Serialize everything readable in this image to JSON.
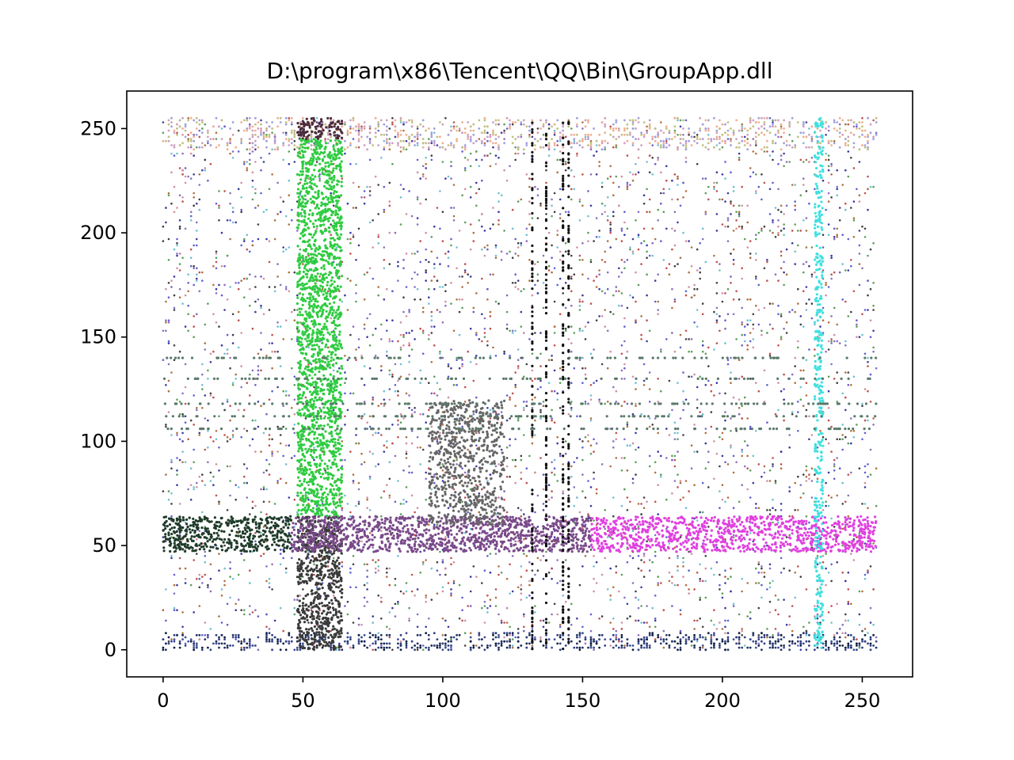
{
  "chart_data": {
    "type": "scatter",
    "title": "D:\\program\\x86\\Tencent\\QQ\\Bin\\GroupApp.dll",
    "xlabel": "",
    "ylabel": "",
    "xlim": [
      -13,
      268
    ],
    "ylim": [
      -13,
      268
    ],
    "x_ticks": [
      0,
      50,
      100,
      150,
      200,
      250
    ],
    "y_ticks": [
      0,
      50,
      100,
      150,
      200,
      250
    ],
    "grid": false,
    "legend": "none",
    "point_domain": {
      "x": [
        0,
        255
      ],
      "y": [
        0,
        255
      ]
    },
    "features": [
      {
        "name": "vertical green band",
        "x": [
          48,
          64
        ],
        "y": [
          0,
          255
        ],
        "color": "#2ecc40"
      },
      {
        "name": "horizontal band",
        "x": [
          0,
          255
        ],
        "y": [
          47,
          64
        ],
        "colors": [
          "#1f3b2a",
          "#7a4a8a",
          "#e040e0"
        ]
      },
      {
        "name": "gray cluster",
        "x": [
          95,
          122
        ],
        "y": [
          60,
          120
        ],
        "color": "#666666"
      },
      {
        "name": "dark vertical lines",
        "x": [
          132,
          145
        ],
        "y": [
          0,
          255
        ],
        "color": "#111111"
      },
      {
        "name": "cyan vertical line",
        "x": [
          233,
          236
        ],
        "y": [
          0,
          255
        ],
        "color": "#40e0e0"
      },
      {
        "name": "horizontal lines",
        "x": [
          0,
          255
        ],
        "y": [
          105,
          140
        ],
        "color": "#5a7a6a"
      }
    ]
  }
}
